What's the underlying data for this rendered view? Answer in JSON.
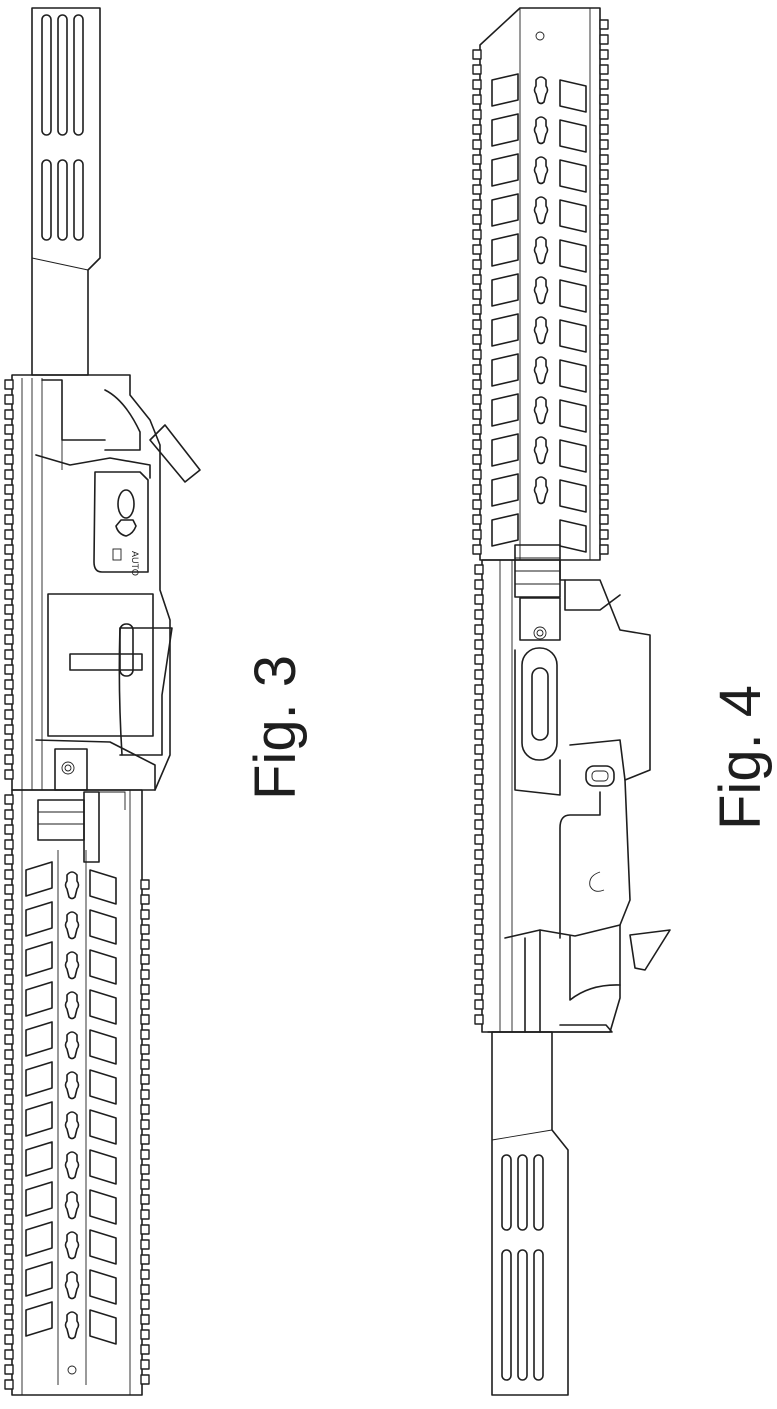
{
  "figures": [
    {
      "id": "fig3",
      "label": "Fig. 3",
      "selector_marking": "AUTO"
    },
    {
      "id": "fig4",
      "label": "Fig. 4"
    }
  ]
}
